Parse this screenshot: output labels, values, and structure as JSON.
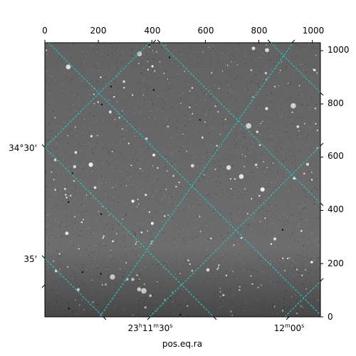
{
  "figure": {
    "xlabel": "pos.eq.ra",
    "top_ticks": [
      "0",
      "200",
      "400",
      "600",
      "800",
      "1000"
    ],
    "right_ticks": [
      "0",
      "200",
      "400",
      "600",
      "800",
      "1000"
    ],
    "ra_ticks": [
      {
        "h": "23",
        "m": "11",
        "s": "30"
      },
      {
        "h": "",
        "m": "12",
        "s": "00"
      }
    ],
    "dec_ticks": [
      "34°30'",
      "35'"
    ],
    "pixel_range": {
      "x": [
        0,
        1030
      ],
      "y": [
        0,
        1030
      ]
    },
    "grid_color": "#22c4c4",
    "background": "#6d6d6d"
  }
}
